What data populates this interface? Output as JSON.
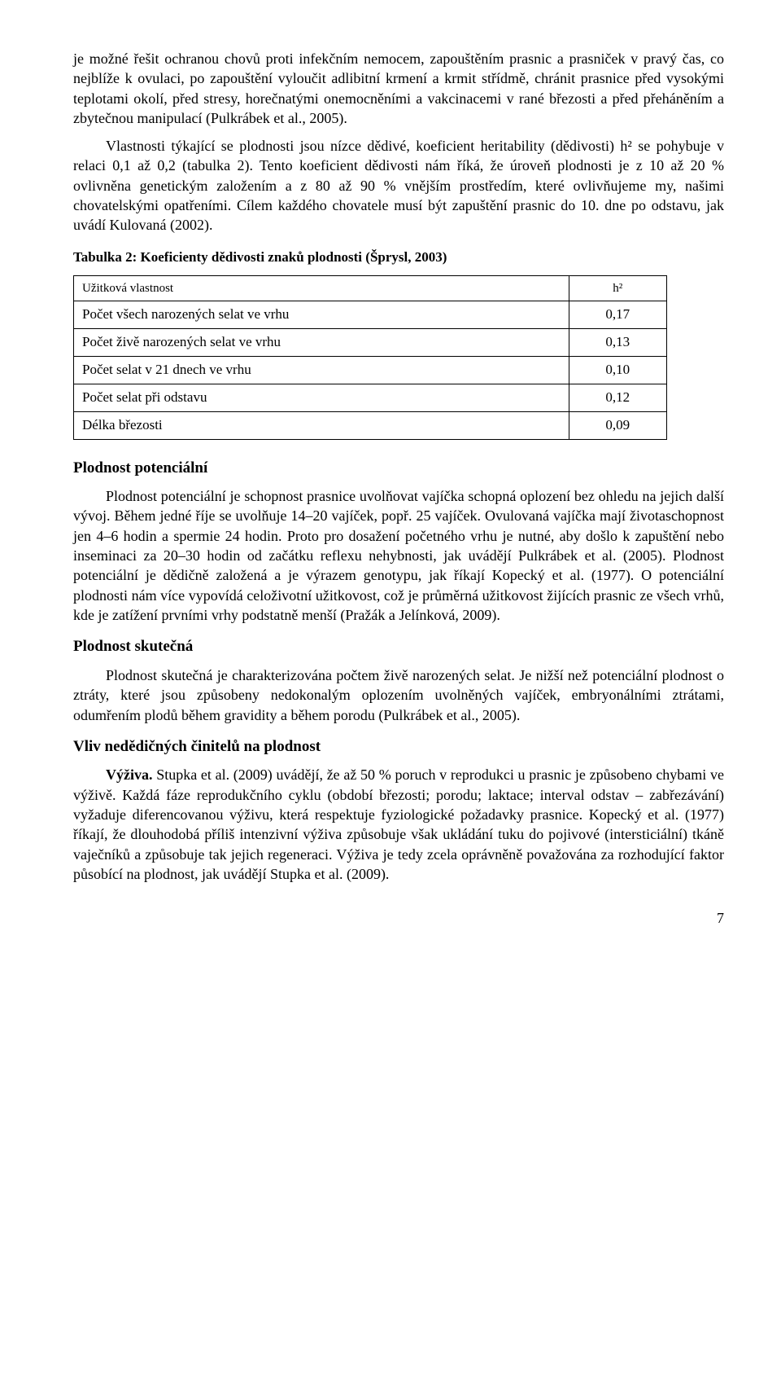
{
  "para1": "je možné řešit ochranou chovů proti infekčním nemocem, zapouštěním prasnic a prasniček v pravý čas, co nejblíže k ovulaci, po zapouštění vyloučit adlibitní krmení a krmit střídmě, chránit prasnice před vysokými teplotami okolí, před stresy, horečnatými onemocněními a vakcinacemi v rané březosti a před přeháněním a zbytečnou manipulací (Pulkrábek et al., 2005).",
  "para2": "Vlastnosti týkající se plodnosti jsou nízce dědivé, koeficient heritability (dědivosti) h² se pohybuje v relaci 0,1 až 0,2 (tabulka 2). Tento koeficient dědivosti nám říká, že úroveň plodnosti je z 10 až 20 % ovlivněna genetickým založením a z 80 až 90 % vnějším prostředím, které ovlivňujeme my, našimi chovatelskými opatřeními. Cílem každého chovatele musí být zapuštění prasnic do 10. dne po odstavu, jak uvádí Kulovaná (2002).",
  "tableCaption": "Tabulka 2: Koeficienty dědivosti znaků plodnosti (Šprysl, 2003)",
  "table": {
    "headLabel": "Užitková vlastnost",
    "headVal": "h²",
    "rows": [
      {
        "label": "Počet všech narozených selat ve vrhu",
        "val": "0,17"
      },
      {
        "label": "Počet živě narozených selat ve vrhu",
        "val": "0,13"
      },
      {
        "label": "Počet selat v 21 dnech ve vrhu",
        "val": "0,10"
      },
      {
        "label": "Počet selat při odstavu",
        "val": "0,12"
      },
      {
        "label": "Délka březosti",
        "val": "0,09"
      }
    ]
  },
  "h1": "Plodnost potenciální",
  "para3": "Plodnost potenciální je schopnost prasnice uvolňovat vajíčka schopná oplození bez ohledu na jejich další vývoj. Během jedné říje se uvolňuje 14–20 vajíček, popř. 25 vajíček. Ovulovaná vajíčka mají životaschopnost jen 4–6 hodin a spermie 24 hodin. Proto pro dosažení početného vrhu je nutné, aby došlo k zapuštění nebo inseminaci za 20–30 hodin od začátku reflexu nehybnosti, jak uvádějí Pulkrábek et al. (2005). Plodnost potenciální je dědičně založená a je výrazem genotypu, jak říkají Kopecký et al. (1977). O potenciální plodnosti nám více vypovídá celoživotní užitkovost, což je průměrná užitkovost žijících prasnic ze všech vrhů, kde je zatížení prvními vrhy podstatně menší (Pražák a Jelínková, 2009).",
  "h2": "Plodnost skutečná",
  "para4": "Plodnost skutečná je charakterizována počtem živě narozených selat. Je nižší než potenciální plodnost o ztráty, které jsou způsobeny nedokonalým oplozením uvolněných vajíček, embryonálními ztrátami, odumřením plodů během gravidity a během porodu (Pulkrábek et al., 2005).",
  "h3": "Vliv nedědičných činitelů na plodnost",
  "para5a": "Výživa.",
  "para5b": " Stupka et al. (2009) uvádějí, že až 50 % poruch v reprodukci u prasnic je způsobeno chybami ve výživě. Každá fáze reprodukčního cyklu (období březosti; porodu; laktace; interval odstav – zabřezávání) vyžaduje diferencovanou výživu, která respektuje fyziologické požadavky prasnice. Kopecký et al. (1977) říkají, že dlouhodobá příliš intenzivní výživa způsobuje však ukládání tuku do pojivové (intersticiální) tkáně vaječníků a způsobuje tak jejich regeneraci. Výživa je tedy zcela oprávněně považována za rozhodující faktor působící na plodnost, jak uvádějí Stupka et al. (2009).",
  "pageNumber": "7"
}
